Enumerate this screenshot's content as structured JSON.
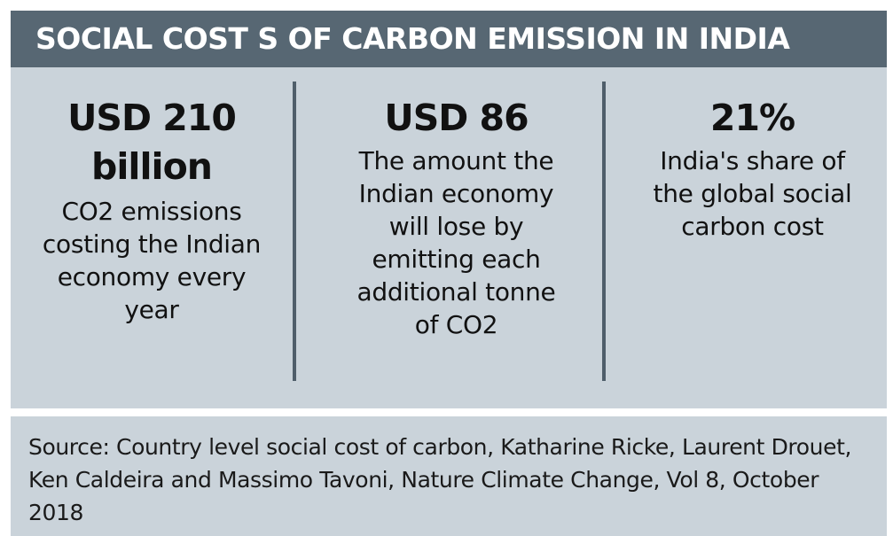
{
  "title": "SOCIAL COST S OF CARBON EMISSION IN INDIA",
  "stats": [
    {
      "value": "USD 210 billion",
      "description": "CO2 emissions costing the Indian economy every year"
    },
    {
      "value": "USD 86",
      "description": "The amount the Indian economy will lose by emitting each additional tonne of CO2"
    },
    {
      "value": "21%",
      "description": "India's share of the global social carbon cost"
    }
  ],
  "source": "Source: Country level social cost of carbon, Katharine Ricke, Laurent Drouet, Ken Caldeira and Massimo Tavoni, Nature Climate Change, Vol 8, October 2018",
  "colors": {
    "title_bar": "#576773",
    "panel": "#cad3da",
    "divider": "#4f5e6a"
  }
}
